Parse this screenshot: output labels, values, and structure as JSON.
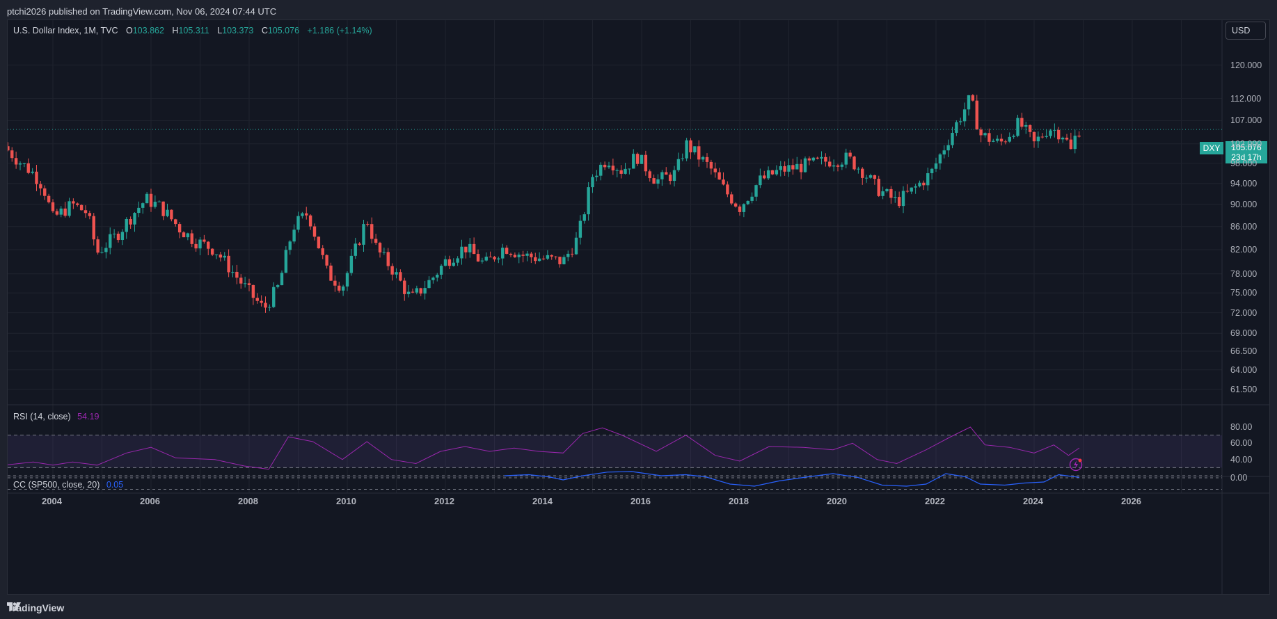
{
  "header": {
    "published": "ptchi2026 published on TradingView.com, Nov 06, 2024 07:44 UTC"
  },
  "legend": {
    "symbol": "U.S. Dollar Index, 1M, TVC",
    "o_label": "O",
    "o_value": "103.862",
    "h_label": "H",
    "h_value": "105.311",
    "l_label": "L",
    "l_value": "103.373",
    "c_label": "C",
    "c_value": "105.076",
    "change": "+1.186 (+1.14%)"
  },
  "currency_button": "USD",
  "price_scale": [
    "120.000",
    "112.000",
    "107.000",
    "102.000",
    "98.000",
    "94.000",
    "90.000",
    "86.000",
    "82.000",
    "78.000",
    "75.000",
    "72.000",
    "69.000",
    "66.500",
    "64.000",
    "61.500"
  ],
  "last_price": {
    "symbol": "DXY",
    "value": "105.076",
    "countdown": "23d 17h"
  },
  "rsi": {
    "label": "RSI (14, close)",
    "value": "54.19",
    "scale": [
      "80.00",
      "60.00",
      "40.00"
    ]
  },
  "cc": {
    "label": "CC (SP500, close, 20)",
    "value": "0.05",
    "scale": [
      "0.00"
    ]
  },
  "time_axis": [
    "2004",
    "2006",
    "2008",
    "2010",
    "2012",
    "2014",
    "2016",
    "2018",
    "2020",
    "2022",
    "2024",
    "2026"
  ],
  "footer": {
    "brand": "TradingView"
  },
  "colors": {
    "up": "#26a69a",
    "down": "#ef5350",
    "rsi": "#9c27b0",
    "cc": "#2962ff"
  },
  "chart_data": {
    "type": "candlestick",
    "symbol": "DXY",
    "interval": "1M",
    "y_scale": "log",
    "close_path": [
      {
        "x": 2003.0,
        "y": 101.5
      },
      {
        "x": 2003.3,
        "y": 98.5
      },
      {
        "x": 2003.6,
        "y": 96.0
      },
      {
        "x": 2003.8,
        "y": 93.5
      },
      {
        "x": 2004.0,
        "y": 87.5
      },
      {
        "x": 2004.4,
        "y": 90.0
      },
      {
        "x": 2004.7,
        "y": 88.5
      },
      {
        "x": 2004.9,
        "y": 81.5
      },
      {
        "x": 2005.3,
        "y": 84.5
      },
      {
        "x": 2005.7,
        "y": 89.0
      },
      {
        "x": 2005.9,
        "y": 91.0
      },
      {
        "x": 2006.2,
        "y": 89.5
      },
      {
        "x": 2006.6,
        "y": 85.5
      },
      {
        "x": 2006.9,
        "y": 83.5
      },
      {
        "x": 2007.3,
        "y": 82.0
      },
      {
        "x": 2007.6,
        "y": 79.0
      },
      {
        "x": 2007.9,
        "y": 76.0
      },
      {
        "x": 2008.3,
        "y": 72.5
      },
      {
        "x": 2008.6,
        "y": 76.0
      },
      {
        "x": 2008.9,
        "y": 86.0
      },
      {
        "x": 2009.2,
        "y": 88.5
      },
      {
        "x": 2009.6,
        "y": 78.0
      },
      {
        "x": 2009.9,
        "y": 76.0
      },
      {
        "x": 2010.4,
        "y": 87.5
      },
      {
        "x": 2010.6,
        "y": 82.0
      },
      {
        "x": 2010.9,
        "y": 79.0
      },
      {
        "x": 2011.3,
        "y": 74.0
      },
      {
        "x": 2011.7,
        "y": 77.0
      },
      {
        "x": 2012.0,
        "y": 80.0
      },
      {
        "x": 2012.4,
        "y": 82.5
      },
      {
        "x": 2012.8,
        "y": 79.5
      },
      {
        "x": 2013.2,
        "y": 82.5
      },
      {
        "x": 2013.6,
        "y": 81.0
      },
      {
        "x": 2014.0,
        "y": 80.5
      },
      {
        "x": 2014.4,
        "y": 80.0
      },
      {
        "x": 2014.7,
        "y": 84.0
      },
      {
        "x": 2015.0,
        "y": 95.5
      },
      {
        "x": 2015.3,
        "y": 99.0
      },
      {
        "x": 2015.6,
        "y": 96.5
      },
      {
        "x": 2015.9,
        "y": 99.5
      },
      {
        "x": 2016.3,
        "y": 94.5
      },
      {
        "x": 2016.7,
        "y": 96.0
      },
      {
        "x": 2016.9,
        "y": 102.0
      },
      {
        "x": 2017.4,
        "y": 97.0
      },
      {
        "x": 2017.7,
        "y": 92.5
      },
      {
        "x": 2018.0,
        "y": 89.5
      },
      {
        "x": 2018.4,
        "y": 94.5
      },
      {
        "x": 2018.8,
        "y": 96.5
      },
      {
        "x": 2019.3,
        "y": 97.5
      },
      {
        "x": 2019.8,
        "y": 98.5
      },
      {
        "x": 2020.2,
        "y": 99.0
      },
      {
        "x": 2020.5,
        "y": 96.5
      },
      {
        "x": 2020.8,
        "y": 93.0
      },
      {
        "x": 2021.2,
        "y": 90.5
      },
      {
        "x": 2021.5,
        "y": 92.5
      },
      {
        "x": 2021.9,
        "y": 96.0
      },
      {
        "x": 2022.3,
        "y": 104.0
      },
      {
        "x": 2022.7,
        "y": 112.0
      },
      {
        "x": 2022.9,
        "y": 104.0
      },
      {
        "x": 2023.3,
        "y": 102.0
      },
      {
        "x": 2023.7,
        "y": 106.5
      },
      {
        "x": 2024.0,
        "y": 102.0
      },
      {
        "x": 2024.3,
        "y": 105.5
      },
      {
        "x": 2024.6,
        "y": 104.0
      },
      {
        "x": 2024.75,
        "y": 100.5
      },
      {
        "x": 2024.85,
        "y": 103.9
      },
      {
        "x": 2024.92,
        "y": 105.08
      }
    ],
    "rsi_path": [
      {
        "x": 2003.0,
        "y": 33
      },
      {
        "x": 2003.6,
        "y": 37
      },
      {
        "x": 2004.0,
        "y": 33
      },
      {
        "x": 2004.4,
        "y": 37
      },
      {
        "x": 2004.9,
        "y": 33
      },
      {
        "x": 2005.5,
        "y": 48
      },
      {
        "x": 2006.0,
        "y": 55
      },
      {
        "x": 2006.5,
        "y": 42
      },
      {
        "x": 2007.3,
        "y": 40
      },
      {
        "x": 2007.9,
        "y": 32
      },
      {
        "x": 2008.4,
        "y": 28
      },
      {
        "x": 2008.8,
        "y": 68
      },
      {
        "x": 2009.3,
        "y": 62
      },
      {
        "x": 2009.9,
        "y": 40
      },
      {
        "x": 2010.4,
        "y": 62
      },
      {
        "x": 2010.9,
        "y": 40
      },
      {
        "x": 2011.4,
        "y": 35
      },
      {
        "x": 2011.9,
        "y": 50
      },
      {
        "x": 2012.4,
        "y": 56
      },
      {
        "x": 2012.9,
        "y": 50
      },
      {
        "x": 2013.4,
        "y": 54
      },
      {
        "x": 2013.9,
        "y": 50
      },
      {
        "x": 2014.4,
        "y": 48
      },
      {
        "x": 2014.8,
        "y": 72
      },
      {
        "x": 2015.2,
        "y": 79
      },
      {
        "x": 2015.6,
        "y": 70
      },
      {
        "x": 2016.3,
        "y": 50
      },
      {
        "x": 2016.9,
        "y": 70
      },
      {
        "x": 2017.5,
        "y": 45
      },
      {
        "x": 2018.0,
        "y": 38
      },
      {
        "x": 2018.6,
        "y": 56
      },
      {
        "x": 2019.3,
        "y": 55
      },
      {
        "x": 2019.9,
        "y": 52
      },
      {
        "x": 2020.3,
        "y": 60
      },
      {
        "x": 2020.8,
        "y": 40
      },
      {
        "x": 2021.2,
        "y": 35
      },
      {
        "x": 2021.8,
        "y": 52
      },
      {
        "x": 2022.3,
        "y": 68
      },
      {
        "x": 2022.7,
        "y": 80
      },
      {
        "x": 2023.0,
        "y": 58
      },
      {
        "x": 2023.5,
        "y": 55
      },
      {
        "x": 2024.0,
        "y": 48
      },
      {
        "x": 2024.4,
        "y": 58
      },
      {
        "x": 2024.7,
        "y": 45
      },
      {
        "x": 2024.92,
        "y": 54.19
      }
    ],
    "cc_path": [
      {
        "x": 2013.2,
        "y": 0.2
      },
      {
        "x": 2013.7,
        "y": 0.3
      },
      {
        "x": 2014.1,
        "y": 0.1
      },
      {
        "x": 2014.4,
        "y": -0.2
      },
      {
        "x": 2014.8,
        "y": 0.2
      },
      {
        "x": 2015.3,
        "y": 0.55
      },
      {
        "x": 2015.8,
        "y": 0.6
      },
      {
        "x": 2016.4,
        "y": 0.2
      },
      {
        "x": 2016.9,
        "y": 0.3
      },
      {
        "x": 2017.3,
        "y": 0.1
      },
      {
        "x": 2017.8,
        "y": -0.6
      },
      {
        "x": 2018.3,
        "y": -0.8
      },
      {
        "x": 2018.8,
        "y": -0.3
      },
      {
        "x": 2019.4,
        "y": 0.1
      },
      {
        "x": 2019.9,
        "y": 0.4
      },
      {
        "x": 2020.4,
        "y": 0.05
      },
      {
        "x": 2020.9,
        "y": -0.7
      },
      {
        "x": 2021.4,
        "y": -0.8
      },
      {
        "x": 2021.8,
        "y": -0.6
      },
      {
        "x": 2022.2,
        "y": 0.4
      },
      {
        "x": 2022.6,
        "y": 0.1
      },
      {
        "x": 2022.9,
        "y": -0.6
      },
      {
        "x": 2023.4,
        "y": -0.7
      },
      {
        "x": 2023.8,
        "y": -0.5
      },
      {
        "x": 2024.2,
        "y": -0.4
      },
      {
        "x": 2024.5,
        "y": 0.3
      },
      {
        "x": 2024.92,
        "y": 0.05
      }
    ]
  }
}
